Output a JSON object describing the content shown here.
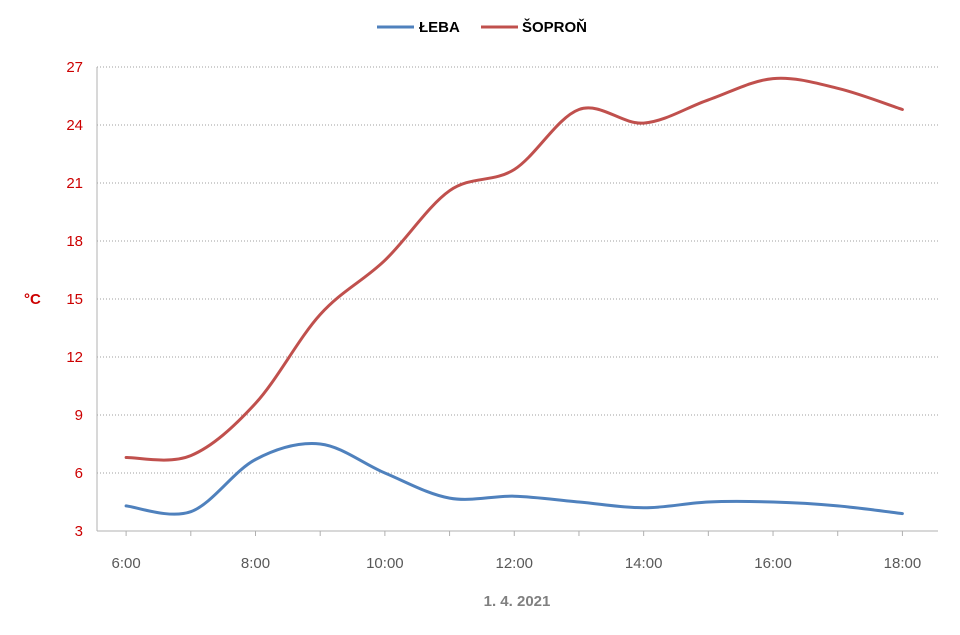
{
  "chart_data": {
    "type": "line",
    "xlabel": "1. 4. 2021",
    "ylabel": "°C",
    "ylim": [
      3,
      27
    ],
    "y_ticks": [
      3,
      6,
      9,
      12,
      15,
      18,
      21,
      24,
      27
    ],
    "x_ticks": [
      "6:00",
      "8:00",
      "10:00",
      "12:00",
      "14:00",
      "16:00",
      "18:00"
    ],
    "x_hours": [
      6,
      7,
      8,
      9,
      10,
      11,
      12,
      13,
      14,
      15,
      16,
      17,
      18
    ],
    "grid": true,
    "legend_position": "top",
    "series": [
      {
        "name": "ŁEBA",
        "color": "#4f81bd",
        "values": [
          4.3,
          4.0,
          6.7,
          7.5,
          6.0,
          4.7,
          4.8,
          4.5,
          4.2,
          4.5,
          4.5,
          4.3,
          3.9
        ]
      },
      {
        "name": "ŠOPROŇ",
        "color": "#c0504d",
        "values": [
          6.8,
          6.9,
          9.6,
          14.2,
          17.0,
          20.6,
          21.7,
          24.8,
          24.1,
          25.3,
          26.4,
          25.9,
          24.8
        ]
      }
    ]
  }
}
